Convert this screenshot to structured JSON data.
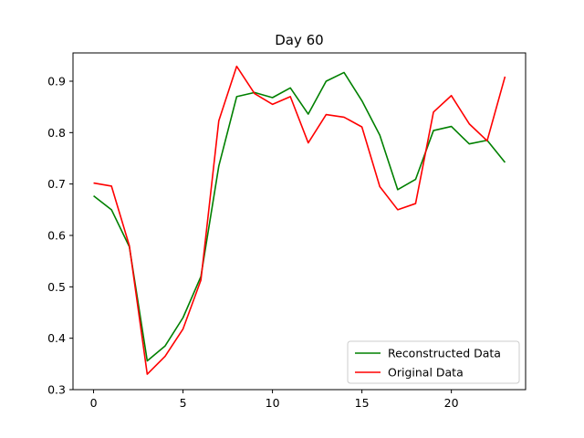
{
  "chart_data": {
    "type": "line",
    "title": "Day 60",
    "xlabel": "",
    "ylabel": "",
    "xlim": [
      -1.15,
      24.15
    ],
    "ylim": [
      0.3,
      0.955
    ],
    "xticks": [
      0,
      5,
      10,
      15,
      20
    ],
    "xtick_labels": [
      "0",
      "5",
      "10",
      "15",
      "20"
    ],
    "yticks": [
      0.3,
      0.4,
      0.5,
      0.6,
      0.7,
      0.8,
      0.9
    ],
    "ytick_labels": [
      "0.3",
      "0.4",
      "0.5",
      "0.6",
      "0.7",
      "0.8",
      "0.9"
    ],
    "grid": false,
    "legend_position": "lower-right",
    "x": [
      0,
      1,
      2,
      3,
      4,
      5,
      6,
      7,
      8,
      9,
      10,
      11,
      12,
      13,
      14,
      15,
      16,
      17,
      18,
      19,
      20,
      21,
      22,
      23
    ],
    "series": [
      {
        "name": "Reconstructed Data",
        "color": "#008000",
        "values": [
          0.677,
          0.65,
          0.578,
          0.356,
          0.385,
          0.44,
          0.52,
          0.735,
          0.87,
          0.878,
          0.868,
          0.887,
          0.836,
          0.9,
          0.917,
          0.862,
          0.795,
          0.689,
          0.709,
          0.804,
          0.812,
          0.778,
          0.785,
          0.742
        ]
      },
      {
        "name": "Original Data",
        "color": "#ff0000",
        "values": [
          0.702,
          0.696,
          0.58,
          0.33,
          0.365,
          0.418,
          0.513,
          0.823,
          0.929,
          0.876,
          0.855,
          0.87,
          0.78,
          0.835,
          0.83,
          0.811,
          0.695,
          0.65,
          0.662,
          0.84,
          0.872,
          0.817,
          0.784,
          0.909
        ]
      }
    ]
  }
}
